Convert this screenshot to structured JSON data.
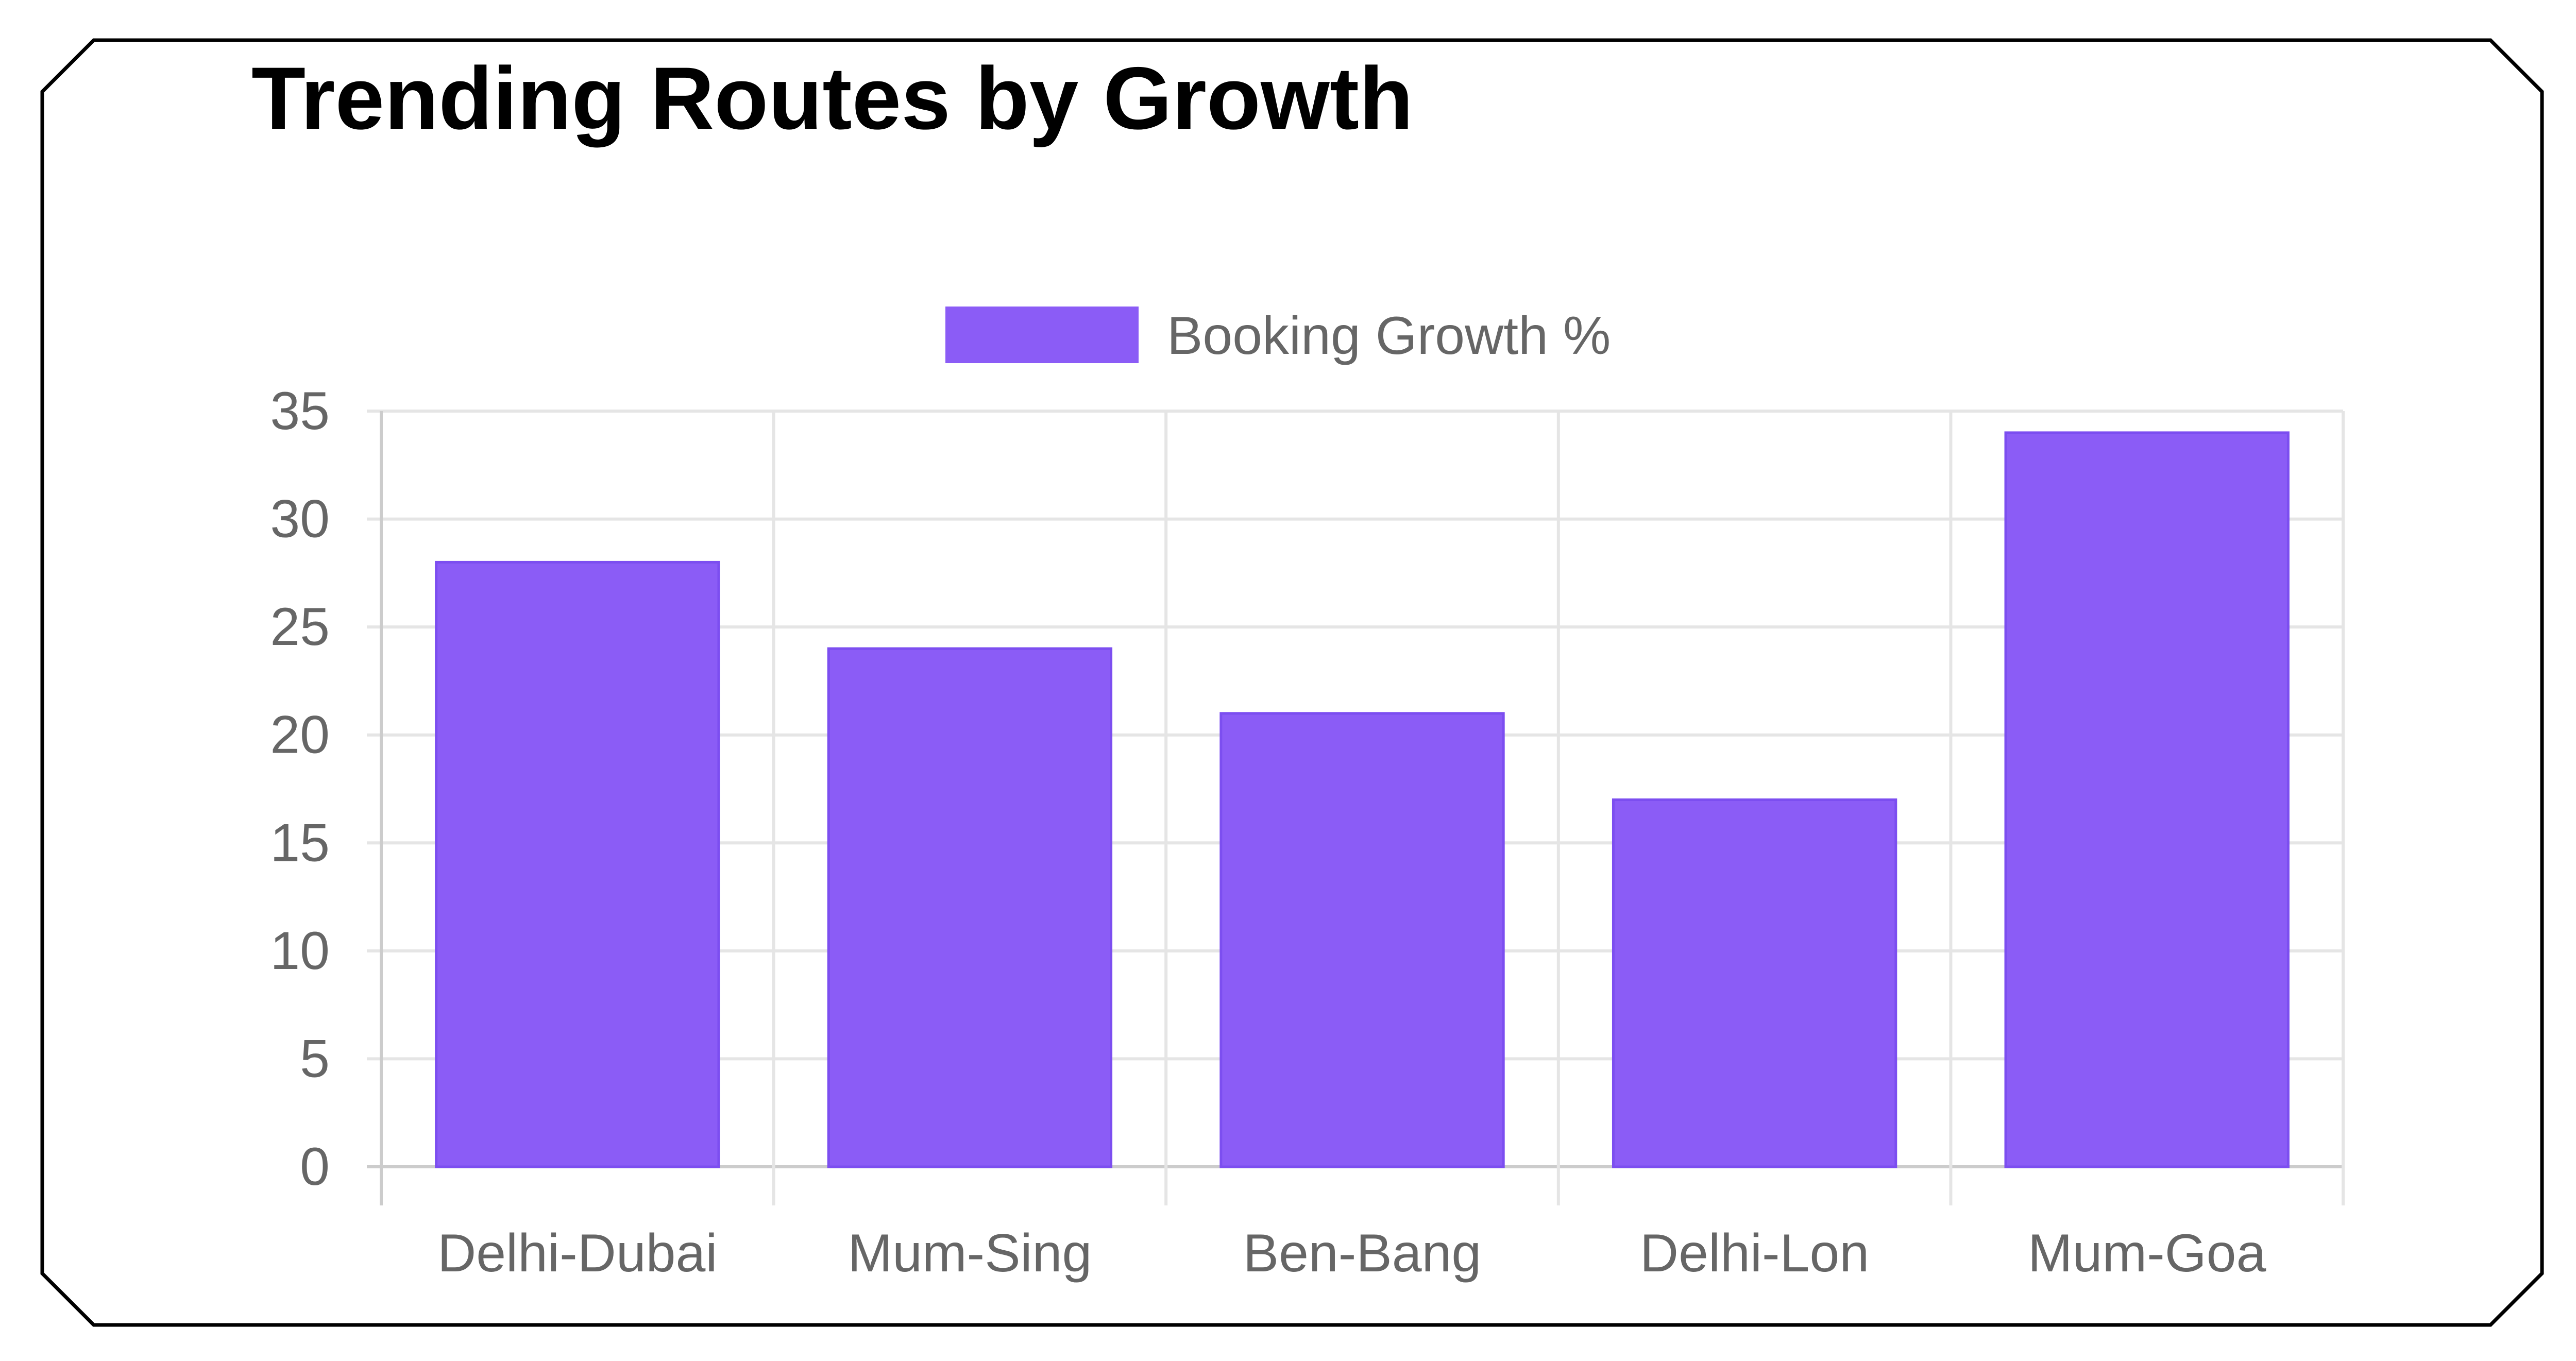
{
  "chart_data": {
    "type": "bar",
    "title": "Trending Routes by Growth",
    "categories": [
      "Delhi-Dubai",
      "Mum-Sing",
      "Ben-Bang",
      "Delhi-Lon",
      "Mum-Goa"
    ],
    "series": [
      {
        "name": "Booking Growth %",
        "values": [
          28,
          24,
          21,
          17,
          34
        ],
        "color": "#8b5cf6"
      }
    ],
    "xlabel": "",
    "ylabel": "",
    "ylim": [
      0,
      35
    ],
    "yticks": [
      0,
      5,
      10,
      15,
      20,
      25,
      30,
      35
    ],
    "grid": true,
    "legend_position": "top-center"
  }
}
